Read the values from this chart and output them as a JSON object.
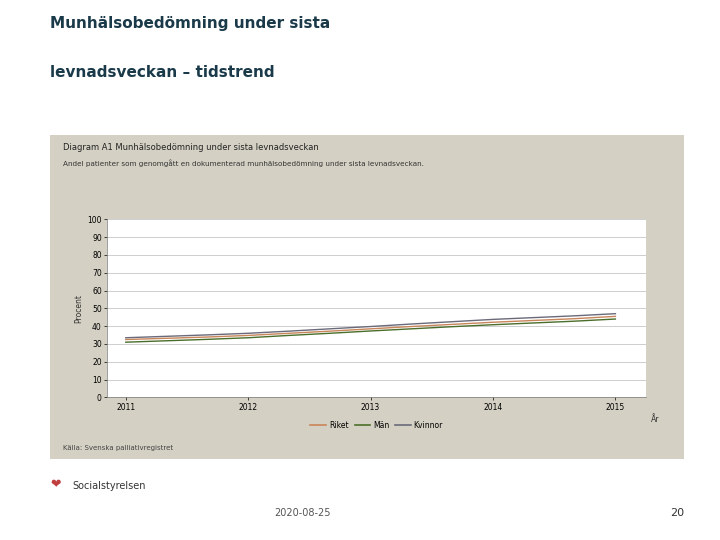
{
  "main_title_line1": "Munhälsobedömning under sista",
  "main_title_line2": "levnadsveckan – tidstrend",
  "main_title_color": "#1a3a4a",
  "chart_title": "Diagram A1 Munhälsobedömning under sista levnadsveckan",
  "subtitle": "Andel patienter som genomgått en dokumenterad munhälsobedömning under sista levnadsveckan.",
  "ylabel": "Procent",
  "xlabel": "År",
  "source": "Källa: Svenska palliativregistret",
  "years": [
    2011,
    2011.333,
    2011.667,
    2012,
    2012.333,
    2012.667,
    2013,
    2013.333,
    2013.667,
    2014,
    2014.333,
    2014.667,
    2015
  ],
  "riket": [
    32.5,
    33.2,
    33.9,
    34.8,
    36.0,
    37.2,
    38.5,
    39.8,
    41.0,
    42.2,
    43.2,
    44.2,
    45.5
  ],
  "man": [
    31.0,
    31.8,
    32.6,
    33.5,
    34.8,
    36.0,
    37.3,
    38.5,
    39.7,
    40.8,
    41.8,
    42.8,
    44.0
  ],
  "kvinnor": [
    33.5,
    34.3,
    35.1,
    36.0,
    37.2,
    38.5,
    39.8,
    41.2,
    42.5,
    43.8,
    44.8,
    45.8,
    47.0
  ],
  "riket_color": "#c8855a",
  "man_color": "#4a6e2a",
  "kvinnor_color": "#6a6a7a",
  "ylim": [
    0,
    100
  ],
  "yticks": [
    0,
    10,
    20,
    30,
    40,
    50,
    60,
    70,
    80,
    90,
    100
  ],
  "xticks": [
    2011,
    2012,
    2013,
    2014,
    2015
  ],
  "bg_outer": "#ffffff",
  "bg_chart": "#d4d1c4",
  "bg_plot": "#ffffff",
  "legend_labels": [
    "Riket",
    "Män",
    "Kvinnor"
  ],
  "date_text": "2020-08-25",
  "page_num": "20"
}
